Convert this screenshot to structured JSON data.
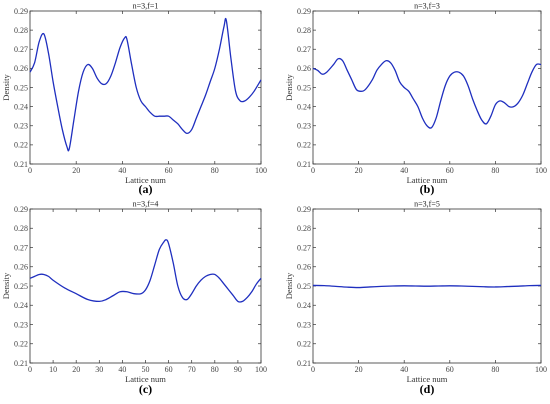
{
  "chart_data": [
    {
      "type": "line",
      "title": "n=3,f=1",
      "xlabel": "Lattice num",
      "ylabel": "Density",
      "panel_label": "(a)",
      "xlim": [
        0,
        100
      ],
      "ylim": [
        0.21,
        0.29
      ],
      "xticks": [
        "0",
        "20",
        "40",
        "60",
        "80",
        "100"
      ],
      "yticks": [
        "0.21",
        "0.22",
        "0.23",
        "0.24",
        "0.25",
        "0.26",
        "0.27",
        "0.28",
        "0.29"
      ],
      "grid": false,
      "color": "#1f2fbf",
      "x": [
        0,
        2,
        4,
        6,
        8,
        10,
        12,
        14,
        16,
        17,
        19,
        21,
        23,
        25,
        27,
        29,
        31,
        33,
        35,
        37,
        39,
        41,
        42,
        44,
        46,
        48,
        50,
        52,
        54,
        56,
        58,
        60,
        62,
        64,
        66,
        68,
        70,
        72,
        74,
        76,
        78,
        80,
        82,
        84,
        85,
        87,
        89,
        91,
        93,
        95,
        97,
        100
      ],
      "y": [
        0.258,
        0.263,
        0.274,
        0.278,
        0.268,
        0.253,
        0.24,
        0.228,
        0.219,
        0.218,
        0.233,
        0.248,
        0.258,
        0.262,
        0.26,
        0.255,
        0.252,
        0.252,
        0.256,
        0.263,
        0.271,
        0.276,
        0.275,
        0.262,
        0.25,
        0.243,
        0.24,
        0.237,
        0.235,
        0.235,
        0.235,
        0.235,
        0.233,
        0.231,
        0.228,
        0.226,
        0.228,
        0.234,
        0.24,
        0.246,
        0.253,
        0.26,
        0.27,
        0.282,
        0.285,
        0.265,
        0.248,
        0.243,
        0.243,
        0.245,
        0.248,
        0.254
      ]
    },
    {
      "type": "line",
      "title": "n=3,f=3",
      "xlabel": "Lattice num",
      "ylabel": "Density",
      "panel_label": "(b)",
      "xlim": [
        0,
        100
      ],
      "ylim": [
        0.21,
        0.29
      ],
      "xticks": [
        "0",
        "20",
        "40",
        "60",
        "80",
        "100"
      ],
      "yticks": [
        "0.21",
        "0.22",
        "0.23",
        "0.24",
        "0.25",
        "0.26",
        "0.27",
        "0.28",
        "0.29"
      ],
      "grid": false,
      "color": "#1f2fbf",
      "x": [
        0,
        2,
        4,
        6,
        9,
        11,
        13,
        15,
        17,
        19,
        21,
        23,
        26,
        28,
        30,
        32,
        34,
        36,
        38,
        40,
        42,
        44,
        46,
        48,
        50,
        52,
        54,
        56,
        58,
        60,
        62,
        64,
        66,
        68,
        70,
        72,
        74,
        76,
        78,
        80,
        82,
        84,
        86,
        88,
        90,
        92,
        94,
        96,
        98,
        100
      ],
      "y": [
        0.26,
        0.259,
        0.257,
        0.258,
        0.262,
        0.265,
        0.264,
        0.259,
        0.254,
        0.249,
        0.248,
        0.249,
        0.254,
        0.259,
        0.262,
        0.264,
        0.263,
        0.259,
        0.253,
        0.25,
        0.248,
        0.244,
        0.24,
        0.234,
        0.23,
        0.229,
        0.234,
        0.243,
        0.251,
        0.256,
        0.258,
        0.258,
        0.256,
        0.251,
        0.244,
        0.238,
        0.233,
        0.231,
        0.235,
        0.241,
        0.243,
        0.242,
        0.24,
        0.24,
        0.242,
        0.246,
        0.252,
        0.258,
        0.262,
        0.262
      ]
    },
    {
      "type": "line",
      "title": "n=3,f=4",
      "xlabel": "Lattice num",
      "ylabel": "Density",
      "panel_label": "(c)",
      "xlim": [
        0,
        100
      ],
      "ylim": [
        0.21,
        0.29
      ],
      "xticks": [
        "0",
        "10",
        "20",
        "30",
        "40",
        "50",
        "60",
        "70",
        "80",
        "90",
        "100"
      ],
      "yticks": [
        "0.21",
        "0.22",
        "0.23",
        "0.24",
        "0.25",
        "0.26",
        "0.27",
        "0.28",
        "0.29"
      ],
      "grid": false,
      "color": "#1f2fbf",
      "x": [
        0,
        2,
        4,
        6,
        8,
        10,
        15,
        20,
        25,
        30,
        33,
        36,
        39,
        42,
        45,
        48,
        50,
        52,
        54,
        56,
        58,
        59,
        60,
        62,
        64,
        66,
        68,
        70,
        72,
        74,
        76,
        78,
        80,
        82,
        84,
        86,
        88,
        90,
        92,
        94,
        96,
        98,
        100
      ],
      "y": [
        0.254,
        0.255,
        0.256,
        0.256,
        0.255,
        0.253,
        0.249,
        0.246,
        0.243,
        0.242,
        0.243,
        0.245,
        0.247,
        0.247,
        0.246,
        0.246,
        0.248,
        0.253,
        0.261,
        0.269,
        0.273,
        0.274,
        0.272,
        0.262,
        0.25,
        0.244,
        0.243,
        0.246,
        0.25,
        0.253,
        0.255,
        0.256,
        0.256,
        0.254,
        0.251,
        0.248,
        0.245,
        0.242,
        0.242,
        0.244,
        0.247,
        0.251,
        0.254
      ]
    },
    {
      "type": "line",
      "title": "n=3,f=5",
      "xlabel": "Lattice num",
      "ylabel": "Density",
      "panel_label": "(d)",
      "xlim": [
        0,
        100
      ],
      "ylim": [
        0.21,
        0.29
      ],
      "xticks": [
        "0",
        "20",
        "40",
        "60",
        "80",
        "100"
      ],
      "yticks": [
        "0.21",
        "0.22",
        "0.23",
        "0.24",
        "0.25",
        "0.26",
        "0.27",
        "0.28",
        "0.29"
      ],
      "grid": false,
      "color": "#1f2fbf",
      "x": [
        0,
        5,
        10,
        15,
        20,
        25,
        30,
        35,
        40,
        45,
        50,
        55,
        60,
        65,
        70,
        75,
        80,
        85,
        90,
        95,
        100
      ],
      "y": [
        0.2503,
        0.2502,
        0.2498,
        0.2494,
        0.2492,
        0.2495,
        0.2498,
        0.25,
        0.2501,
        0.25,
        0.2499,
        0.25,
        0.2501,
        0.25,
        0.2498,
        0.2496,
        0.2495,
        0.2497,
        0.2499,
        0.2502,
        0.2503
      ]
    }
  ]
}
